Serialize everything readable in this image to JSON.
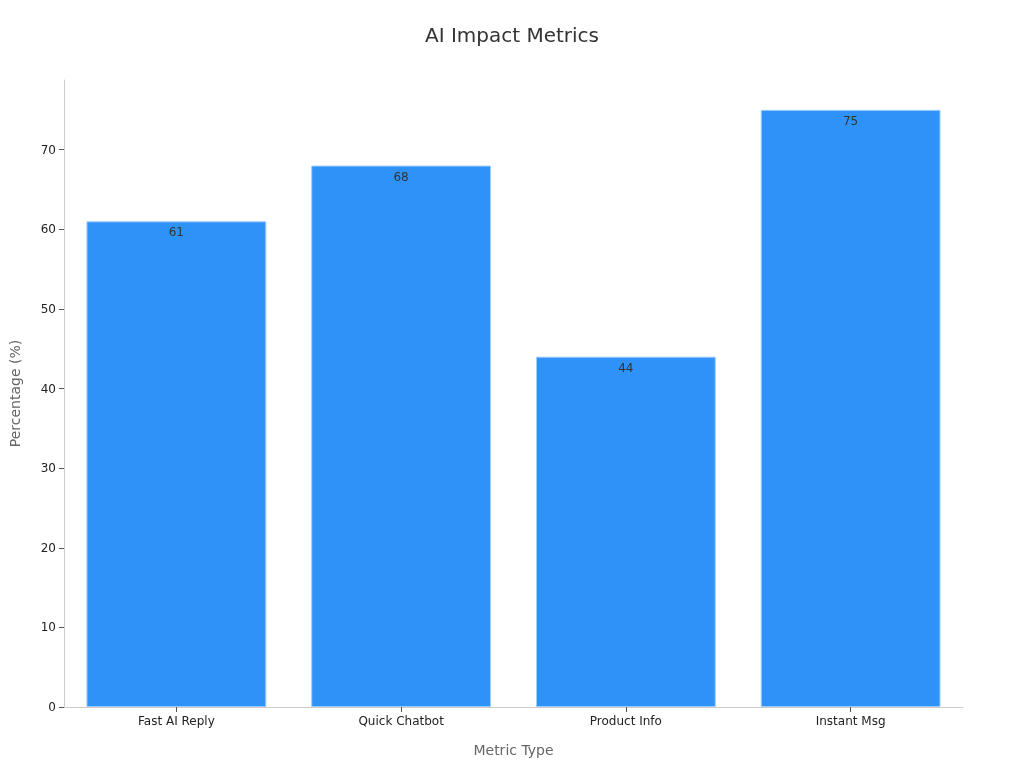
{
  "chart_data": {
    "type": "bar",
    "title": "AI Impact Metrics",
    "xlabel": "Metric Type",
    "ylabel": "Percentage (%)",
    "categories": [
      "Fast AI Reply",
      "Quick Chatbot",
      "Product Info",
      "Instant Msg"
    ],
    "values": [
      61,
      68,
      44,
      75
    ],
    "color": "#2f92f8",
    "ylim": [
      0,
      78.75
    ],
    "yticks": [
      0,
      10,
      20,
      30,
      40,
      50,
      60,
      70
    ],
    "grid": false,
    "data_labels": true
  }
}
